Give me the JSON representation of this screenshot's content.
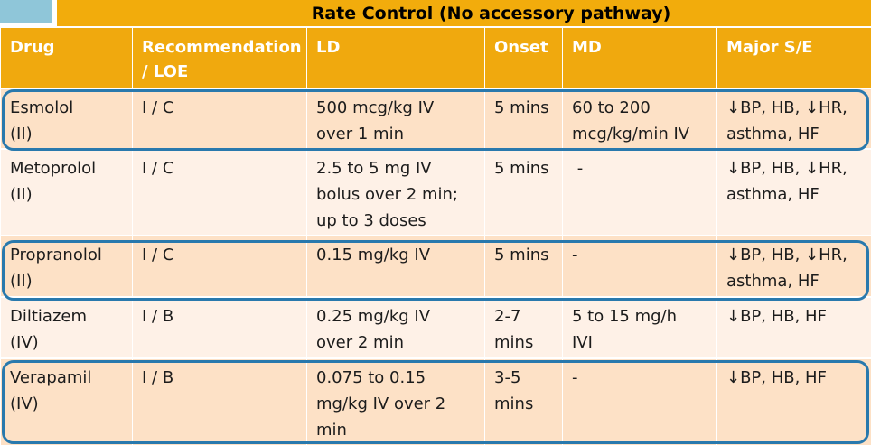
{
  "title": "Rate Control (No accessory pathway)",
  "columns": [
    "Drug",
    "Recommendation / LOE",
    "LD",
    "Onset",
    "MD",
    "Major S/E"
  ],
  "rows": [
    {
      "drug": [
        "Esmolol",
        "(II)"
      ],
      "recommendation": "I / C",
      "ld": [
        "500 mcg/kg IV",
        "over 1 min"
      ],
      "onset": [
        "5 mins"
      ],
      "md": [
        "60 to 200",
        "mcg/kg/min IV"
      ],
      "se": [
        "↓BP, HB, ↓HR,",
        "asthma, HF"
      ]
    },
    {
      "drug": [
        "Metoprolol",
        "(II)"
      ],
      "recommendation": "I / C",
      "ld": [
        "2.5 to 5 mg IV",
        "bolus over 2 min;",
        "up to 3 doses"
      ],
      "onset": [
        "5 mins"
      ],
      "md": [
        " -"
      ],
      "se": [
        "↓BP, HB, ↓HR,",
        "asthma, HF"
      ]
    },
    {
      "drug": [
        "Propranolol",
        "(II)"
      ],
      "recommendation": "I / C",
      "ld": [
        "0.15 mg/kg IV"
      ],
      "onset": [
        "5 mins"
      ],
      "md": [
        "-"
      ],
      "se": [
        "↓BP, HB, ↓HR,",
        "asthma, HF"
      ]
    },
    {
      "drug": [
        "Diltiazem",
        "(IV)"
      ],
      "recommendation": "I / B",
      "ld": [
        "0.25 mg/kg IV",
        "over 2 min"
      ],
      "onset": [
        "2-7",
        "mins"
      ],
      "md": [
        "5 to 15 mg/h",
        "IVI"
      ],
      "se": [
        "↓BP, HB, HF"
      ]
    },
    {
      "drug": [
        "Verapamil",
        "(IV)"
      ],
      "recommendation": "I / B",
      "ld": [
        "0.075 to 0.15",
        "mg/kg IV over 2",
        "min"
      ],
      "onset": [
        "3-5",
        "mins"
      ],
      "md": [
        "-"
      ],
      "se": [
        "↓BP, HB, HF"
      ]
    }
  ],
  "colors": {
    "header": "#f0a90e",
    "title_bar": "#f2ac0c",
    "row_dark": "#fde1c6",
    "row_light": "#fef1e7",
    "highlight_outline": "#2979ad",
    "corner_square": "#8fc6d9"
  }
}
